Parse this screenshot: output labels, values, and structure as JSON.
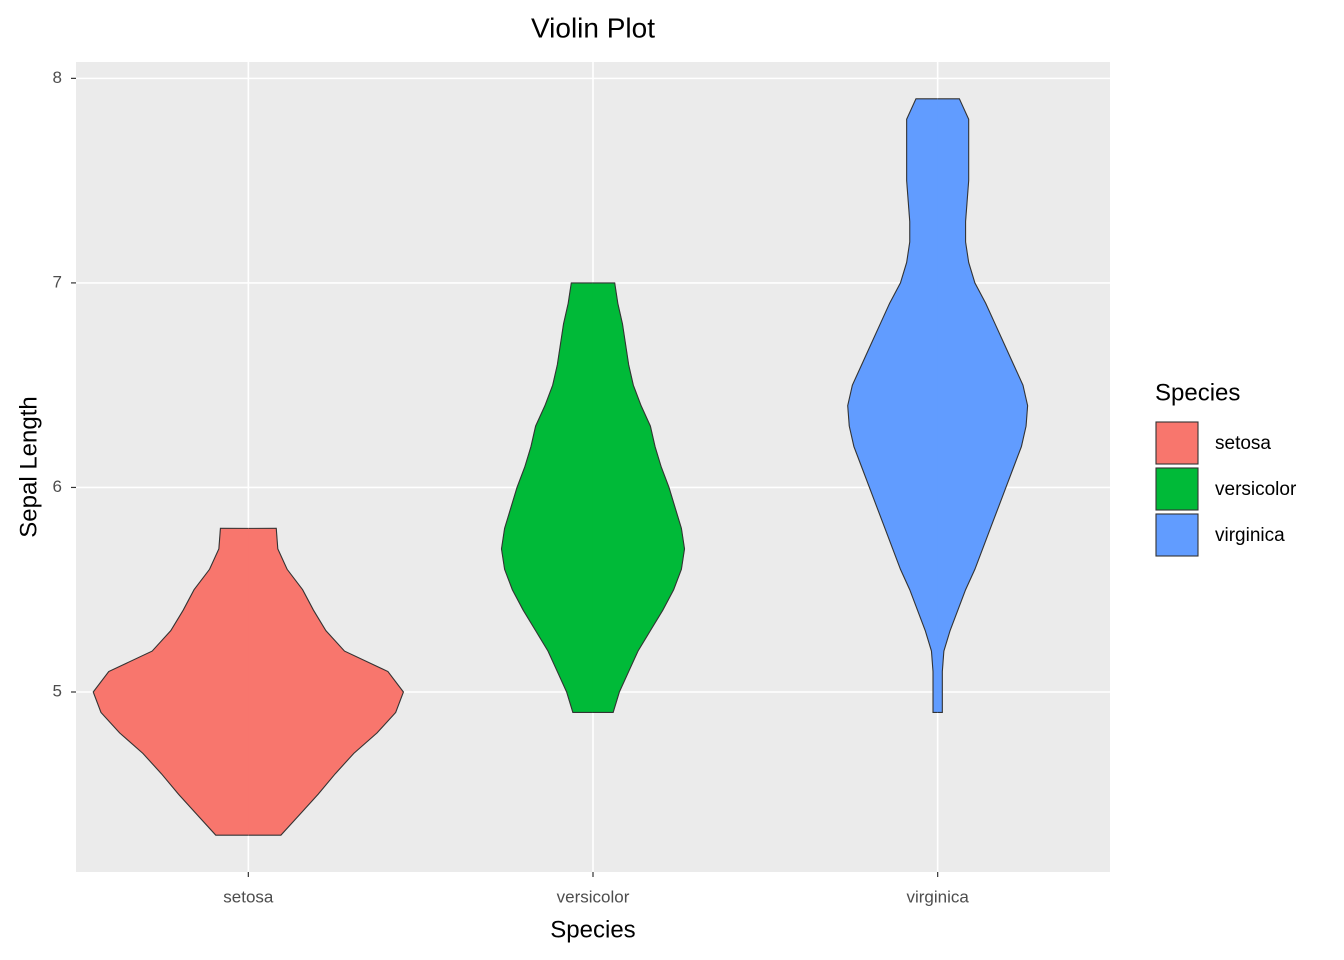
{
  "chart_data": {
    "type": "violin",
    "title": "Violin Plot",
    "x_label": "Species",
    "y_label": "Sepal Length",
    "categories": [
      "setosa",
      "versicolor",
      "virginica"
    ],
    "legend_title": "Species",
    "legend": "right",
    "grid": true,
    "ylim": [
      4.12,
      8.08
    ],
    "yticks": [
      5,
      6,
      7,
      8
    ],
    "series": [
      {
        "name": "setosa",
        "color": "#f8766d",
        "y": [
          4.3,
          4.4,
          4.5,
          4.6,
          4.7,
          4.8,
          4.9,
          5.0,
          5.1,
          5.2,
          5.3,
          5.4,
          5.5,
          5.6,
          5.7,
          5.8
        ],
        "width": [
          0.21,
          0.33,
          0.45,
          0.56,
          0.68,
          0.83,
          0.95,
          1.0,
          0.9,
          0.62,
          0.5,
          0.42,
          0.35,
          0.25,
          0.19,
          0.18
        ]
      },
      {
        "name": "versicolor",
        "color": "#00ba38",
        "y": [
          4.9,
          5.0,
          5.1,
          5.2,
          5.3,
          5.4,
          5.5,
          5.6,
          5.7,
          5.8,
          5.9,
          6.0,
          6.1,
          6.2,
          6.3,
          6.4,
          6.5,
          6.6,
          6.7,
          6.8,
          6.9,
          7.0
        ],
        "width": [
          0.13,
          0.17,
          0.23,
          0.29,
          0.37,
          0.45,
          0.52,
          0.57,
          0.59,
          0.57,
          0.53,
          0.49,
          0.44,
          0.4,
          0.37,
          0.31,
          0.26,
          0.23,
          0.21,
          0.19,
          0.16,
          0.14
        ]
      },
      {
        "name": "virginica",
        "color": "#619cff",
        "y": [
          4.9,
          5.0,
          5.1,
          5.2,
          5.3,
          5.4,
          5.5,
          5.6,
          5.7,
          5.8,
          5.9,
          6.0,
          6.1,
          6.2,
          6.3,
          6.4,
          6.5,
          6.6,
          6.7,
          6.8,
          6.9,
          7.0,
          7.1,
          7.2,
          7.3,
          7.4,
          7.5,
          7.6,
          7.7,
          7.8,
          7.9
        ],
        "width": [
          0.03,
          0.03,
          0.03,
          0.04,
          0.08,
          0.13,
          0.18,
          0.24,
          0.29,
          0.34,
          0.39,
          0.44,
          0.49,
          0.54,
          0.57,
          0.58,
          0.55,
          0.49,
          0.43,
          0.37,
          0.31,
          0.24,
          0.2,
          0.18,
          0.18,
          0.19,
          0.2,
          0.2,
          0.2,
          0.2,
          0.14
        ]
      }
    ]
  }
}
